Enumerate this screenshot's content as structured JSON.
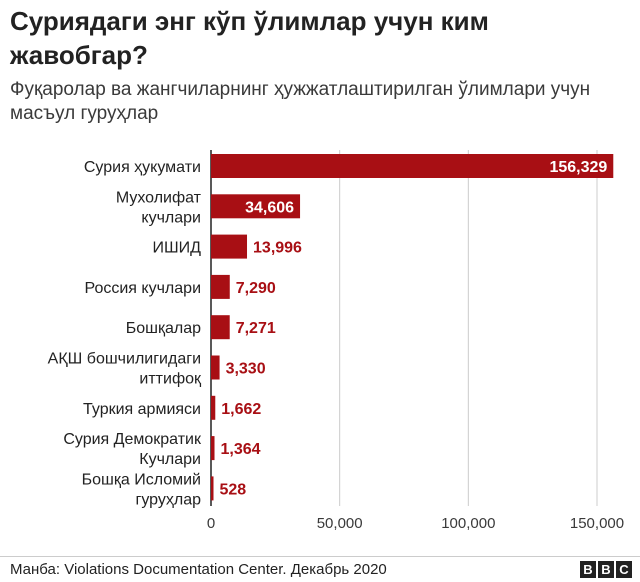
{
  "header": {
    "title": "Суриядаги энг кўп ўлимлар учун ким жавобгар?",
    "subtitle": "Фуқаролар ва жангчиларнинг ҳужжатлаштирилган ўлимлари учун масъул гуруҳлар"
  },
  "chart_data": {
    "type": "bar",
    "orientation": "horizontal",
    "title": "Суриядаги энг кўп ўлимлар учун ким жавобгар?",
    "subtitle": "Фуқаролар ва жангчиларнинг ҳужжатлаштирилган ўлимлари учун масъул гуруҳлар",
    "categories": [
      [
        "Сурия ҳукумати"
      ],
      [
        "Мухолифат",
        "кучлари"
      ],
      [
        "ИШИД"
      ],
      [
        "Россия кучлари"
      ],
      [
        "Бошқалар"
      ],
      [
        "АҚШ бошчилигидаги",
        "иттифоқ"
      ],
      [
        "Туркия армияси"
      ],
      [
        "Сурия Демократик",
        "Кучлари"
      ],
      [
        "Бошқа Исломий",
        "гуруҳлар"
      ]
    ],
    "values": [
      156329,
      34606,
      13996,
      7290,
      7271,
      3330,
      1662,
      1364,
      528
    ],
    "value_labels": [
      "156,329",
      "34,606",
      "13,996",
      "7,290",
      "7,271",
      "3,330",
      "1,662",
      "1,364",
      "528"
    ],
    "xlim": [
      0,
      160000
    ],
    "x_ticks": [
      0,
      50000,
      100000,
      150000
    ],
    "x_tick_labels": [
      "0",
      "50,000",
      "100,000",
      "150,000"
    ],
    "xlabel": "",
    "ylabel": "",
    "grid": true,
    "bar_color": "#a80f14",
    "label_color_outside": "#a80f14",
    "label_color_inside": "#ffffff",
    "gridline_color": "#cccccc",
    "axis_line_color": "#222222"
  },
  "footer": {
    "source": "Манба: Violations Documentation Center. Декабрь 2020",
    "logo_letters": [
      "B",
      "B",
      "C"
    ]
  }
}
